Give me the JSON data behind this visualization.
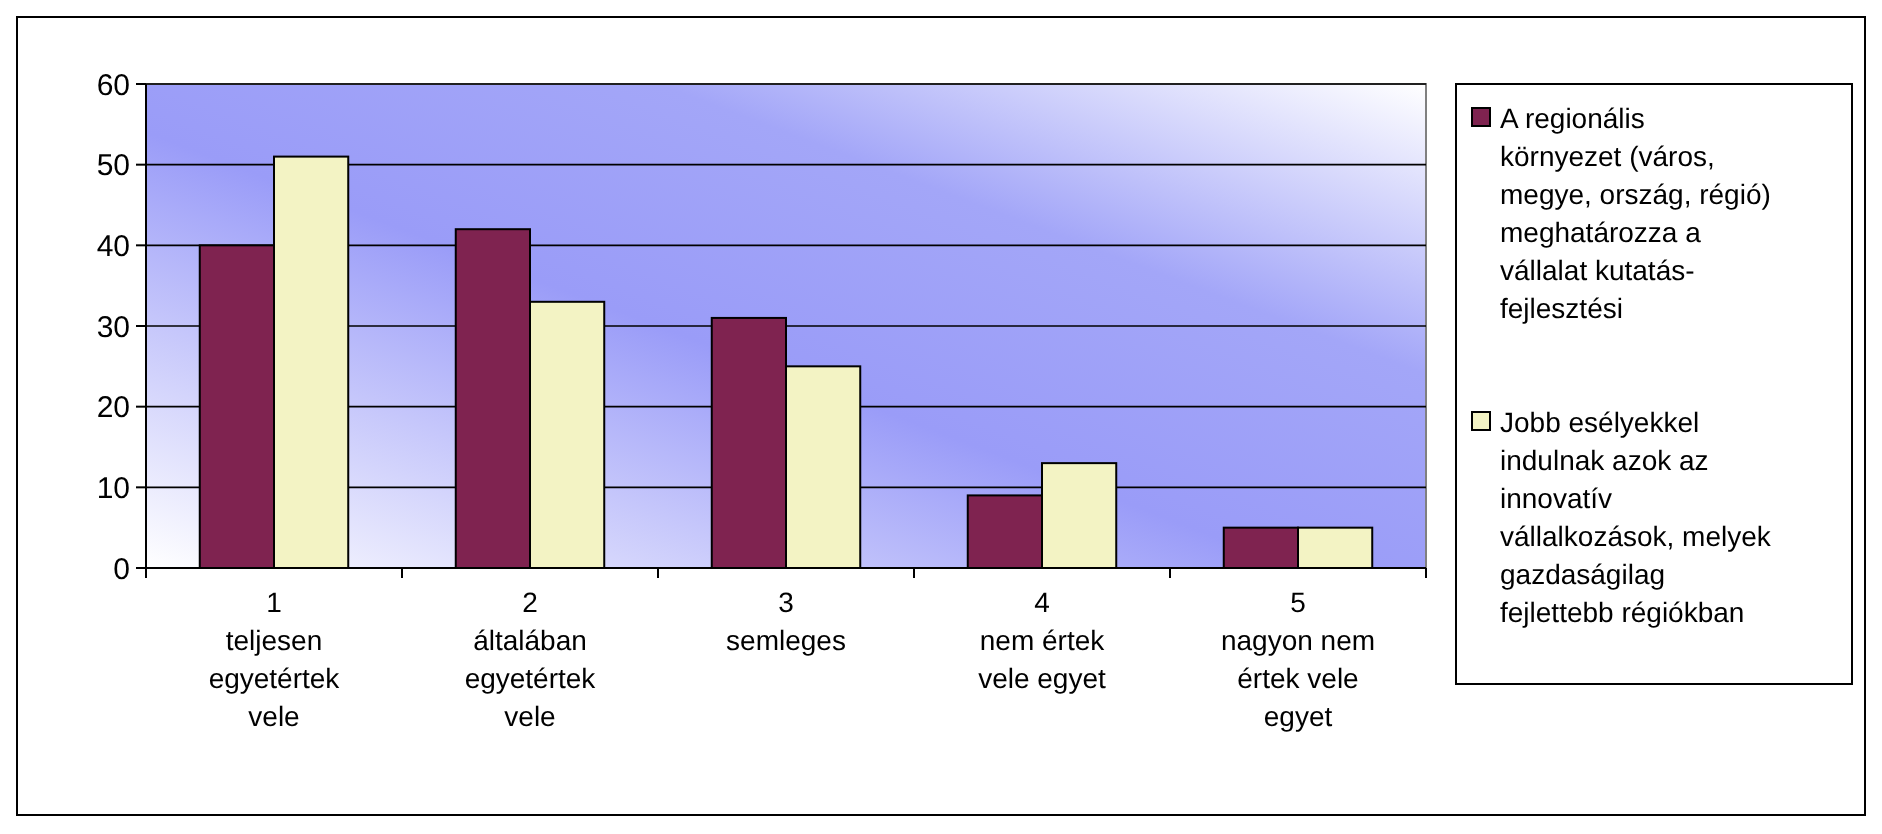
{
  "chart_data": {
    "type": "bar",
    "categories": [
      "1\nteljesen\negyetértek\nvele",
      "2\náltalában\negyetértek\nvele",
      "3\nsemleges",
      "4\nnem értek\nvele egyet",
      "5\nnagyon nem\nértek vele\negyet"
    ],
    "series": [
      {
        "name": "A regionális\nkörnyezet (város,\nmegye, ország, régió)\nmeghatározza a\nvállalat kutatás-\nfejlesztési",
        "color": "#7f2350",
        "values": [
          40,
          42,
          31,
          9,
          5
        ]
      },
      {
        "name": "Jobb esélyekkel\nindulnak azok az\ninnovatív\nvállalkozások, melyek\ngazdaságilag\nfejlettebb régiókban",
        "color": "#f3f3c4",
        "values": [
          51,
          33,
          25,
          13,
          5
        ]
      }
    ],
    "ylim": [
      0,
      60
    ],
    "yticks": [
      0,
      10,
      20,
      30,
      40,
      50,
      60
    ],
    "grid": "y",
    "legend": "right"
  }
}
